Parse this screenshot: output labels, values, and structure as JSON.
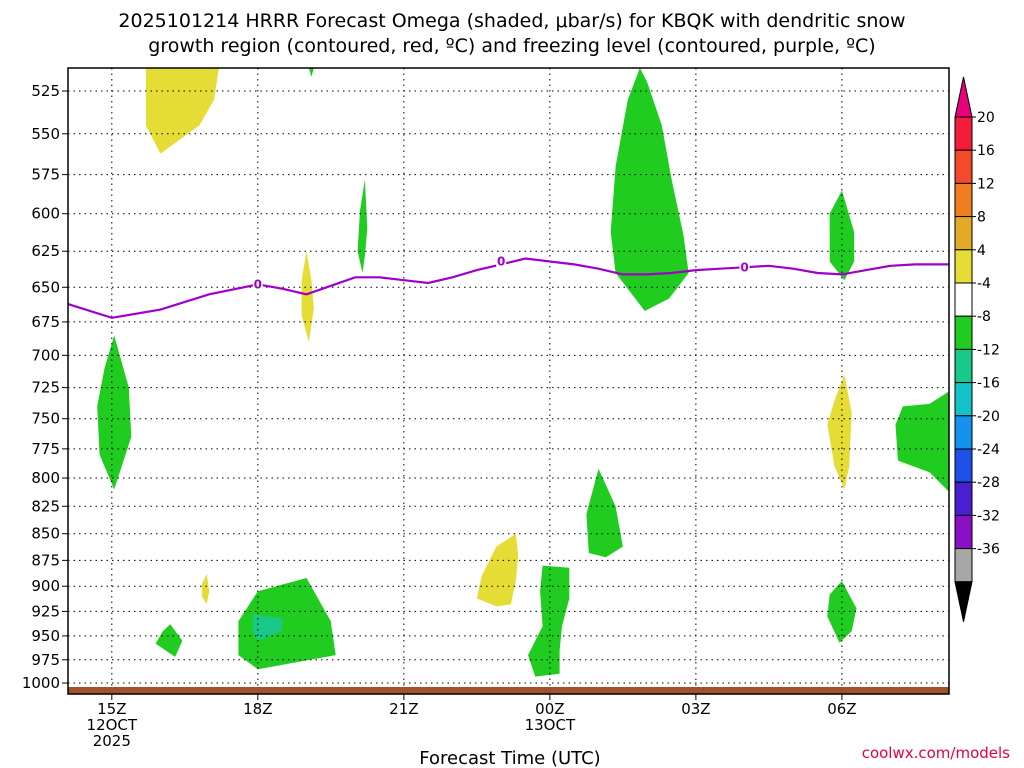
{
  "chart_data": {
    "type": "heatmap",
    "title_line1": "2025101214 HRRR Forecast Omega (shaded, μbar/s) for KBQK with dendritic snow",
    "title_line2": "growth region (contoured, red, ºC) and freezing level (contoured, purple, ºC)",
    "xlabel": "Forecast Time (UTC)",
    "ylabel": "",
    "credit": "coolwx.com/models",
    "x_ticks": [
      {
        "hour": 15,
        "lines": [
          "15Z",
          "12OCT",
          "2025"
        ]
      },
      {
        "hour": 18,
        "lines": [
          "18Z"
        ]
      },
      {
        "hour": 21,
        "lines": [
          "21Z"
        ]
      },
      {
        "hour": 24,
        "lines": [
          "00Z",
          "13OCT"
        ]
      },
      {
        "hour": 27,
        "lines": [
          "03Z"
        ]
      },
      {
        "hour": 30,
        "lines": [
          "06Z"
        ]
      }
    ],
    "xlim_hours": [
      14.1,
      32.2
    ],
    "y_ticks": [
      525,
      550,
      575,
      600,
      625,
      650,
      675,
      700,
      725,
      750,
      775,
      800,
      825,
      850,
      875,
      900,
      925,
      950,
      975,
      1000
    ],
    "ylim_hpa": [
      512,
      1012
    ],
    "y_scale": "log-pressure",
    "grid": true,
    "colorbar": {
      "tick_labels": [
        "20",
        "16",
        "12",
        "8",
        "4",
        "-4",
        "-8",
        "-12",
        "-16",
        "-20",
        "-24",
        "-28",
        "-32",
        "-36"
      ],
      "levels": [
        20,
        16,
        12,
        8,
        4,
        -4,
        -8,
        -12,
        -16,
        -20,
        -24,
        -28,
        -32,
        -36
      ],
      "colors": [
        "#f21d3b",
        "#f24a2a",
        "#ef7e22",
        "#e5a928",
        "#e5dc36",
        "#ffffff",
        "#1fcc1f",
        "#1ac98a",
        "#13c3c8",
        "#1592ec",
        "#1e4fe6",
        "#4a1fd0",
        "#8a10c4",
        "#a7a7a7"
      ],
      "top_cap_color": "#e6007e",
      "bottom_cap_color": "#000000"
    },
    "shaded_regions": [
      {
        "value_range": [
          4,
          8
        ],
        "color": "#e5dc36",
        "points": [
          [
            15.7,
            512
          ],
          [
            17.2,
            512
          ],
          [
            17.1,
            530
          ],
          [
            16.8,
            545
          ],
          [
            16.0,
            562
          ],
          [
            15.7,
            545
          ]
        ]
      },
      {
        "value_range": [
          4,
          8
        ],
        "color": "#e5dc36",
        "points": [
          [
            19.0,
            625
          ],
          [
            19.1,
            645
          ],
          [
            19.15,
            665
          ],
          [
            19.05,
            690
          ],
          [
            18.9,
            670
          ],
          [
            18.9,
            645
          ]
        ]
      },
      {
        "value_range": [
          4,
          8
        ],
        "color": "#e5dc36",
        "points": [
          [
            16.95,
            888
          ],
          [
            17.0,
            905
          ],
          [
            16.95,
            918
          ],
          [
            16.85,
            910
          ],
          [
            16.85,
            898
          ]
        ]
      },
      {
        "value_range": [
          4,
          8
        ],
        "color": "#e5dc36",
        "points": [
          [
            23.3,
            850
          ],
          [
            23.35,
            870
          ],
          [
            23.3,
            895
          ],
          [
            23.2,
            918
          ],
          [
            22.9,
            920
          ],
          [
            22.5,
            912
          ],
          [
            22.6,
            890
          ],
          [
            22.9,
            862
          ]
        ]
      },
      {
        "value_range": [
          4,
          8
        ],
        "color": "#e5dc36",
        "points": [
          [
            30.05,
            715
          ],
          [
            30.2,
            745
          ],
          [
            30.15,
            790
          ],
          [
            30.05,
            810
          ],
          [
            29.85,
            790
          ],
          [
            29.7,
            755
          ],
          [
            29.85,
            735
          ]
        ]
      },
      {
        "value_range": [
          -8,
          -4
        ],
        "color": "#1fcc1f",
        "points": [
          [
            19.05,
            512
          ],
          [
            19.15,
            512
          ],
          [
            19.1,
            517
          ]
        ]
      },
      {
        "value_range": [
          -8,
          -4
        ],
        "color": "#1fcc1f",
        "points": [
          [
            20.2,
            578
          ],
          [
            20.25,
            610
          ],
          [
            20.2,
            628
          ],
          [
            20.15,
            640
          ],
          [
            20.05,
            625
          ],
          [
            20.1,
            598
          ]
        ]
      },
      {
        "value_range": [
          -8,
          -4
        ],
        "color": "#1fcc1f",
        "points": [
          [
            15.05,
            685
          ],
          [
            15.35,
            725
          ],
          [
            15.4,
            765
          ],
          [
            15.05,
            810
          ],
          [
            14.75,
            780
          ],
          [
            14.7,
            740
          ],
          [
            14.85,
            710
          ]
        ]
      },
      {
        "value_range": [
          -8,
          -4
        ],
        "color": "#1fcc1f",
        "points": [
          [
            16.2,
            938
          ],
          [
            16.45,
            955
          ],
          [
            16.3,
            972
          ],
          [
            15.9,
            958
          ],
          [
            16.05,
            945
          ]
        ]
      },
      {
        "value_range": [
          -8,
          -4
        ],
        "color": "#1fcc1f",
        "points": [
          [
            19.0,
            892
          ],
          [
            19.5,
            935
          ],
          [
            19.6,
            970
          ],
          [
            18.0,
            985
          ],
          [
            17.6,
            970
          ],
          [
            17.6,
            935
          ],
          [
            18.0,
            905
          ]
        ]
      },
      {
        "value_range": [
          -8,
          -4
        ],
        "color": "#1fcc1f",
        "points": [
          [
            24.4,
            882
          ],
          [
            24.4,
            912
          ],
          [
            24.25,
            940
          ],
          [
            24.2,
            965
          ],
          [
            24.2,
            990
          ],
          [
            23.7,
            993
          ],
          [
            23.55,
            970
          ],
          [
            23.85,
            940
          ],
          [
            23.8,
            905
          ],
          [
            23.85,
            880
          ]
        ]
      },
      {
        "value_range": [
          -8,
          -4
        ],
        "color": "#1fcc1f",
        "points": [
          [
            25.0,
            792
          ],
          [
            25.35,
            825
          ],
          [
            25.5,
            862
          ],
          [
            25.15,
            872
          ],
          [
            24.8,
            868
          ],
          [
            24.75,
            832
          ]
        ]
      },
      {
        "value_range": [
          -8,
          -4
        ],
        "color": "#1fcc1f",
        "points": [
          [
            26.0,
            520
          ],
          [
            26.3,
            545
          ],
          [
            26.5,
            578
          ],
          [
            26.75,
            615
          ],
          [
            26.85,
            640
          ],
          [
            26.45,
            658
          ],
          [
            25.95,
            667
          ],
          [
            25.35,
            640
          ],
          [
            25.25,
            612
          ],
          [
            25.35,
            570
          ],
          [
            25.6,
            530
          ],
          [
            25.85,
            512
          ]
        ]
      },
      {
        "value_range": [
          -8,
          -4
        ],
        "color": "#1fcc1f",
        "points": [
          [
            30.0,
            585
          ],
          [
            30.25,
            612
          ],
          [
            30.25,
            632
          ],
          [
            30.05,
            645
          ],
          [
            29.75,
            632
          ],
          [
            29.75,
            600
          ]
        ]
      },
      {
        "value_range": [
          -8,
          -4
        ],
        "color": "#1fcc1f",
        "points": [
          [
            32.2,
            728
          ],
          [
            32.2,
            812
          ],
          [
            31.8,
            795
          ],
          [
            31.15,
            785
          ],
          [
            31.1,
            755
          ],
          [
            31.25,
            740
          ],
          [
            31.8,
            738
          ]
        ]
      },
      {
        "value_range": [
          -8,
          -4
        ],
        "color": "#1fcc1f",
        "points": [
          [
            30.0,
            895
          ],
          [
            30.3,
            922
          ],
          [
            30.2,
            945
          ],
          [
            29.95,
            957
          ],
          [
            29.7,
            930
          ],
          [
            29.75,
            908
          ]
        ]
      },
      {
        "value_range": [
          -12,
          -8
        ],
        "color": "#1ac98a",
        "points": [
          [
            17.9,
            928
          ],
          [
            18.5,
            932
          ],
          [
            18.5,
            945
          ],
          [
            18.0,
            955
          ],
          [
            17.9,
            945
          ]
        ]
      }
    ],
    "freezing_level": {
      "label": "0",
      "color": "#a000c8",
      "x_hours": [
        14.1,
        15.0,
        16.0,
        17.0,
        18.0,
        18.5,
        19.0,
        20.0,
        20.5,
        21.0,
        21.5,
        22.0,
        22.5,
        23.0,
        23.5,
        24.0,
        24.5,
        25.0,
        25.5,
        26.0,
        26.5,
        27.0,
        27.5,
        28.0,
        28.5,
        29.0,
        29.5,
        30.0,
        30.5,
        31.0,
        31.5,
        32.2
      ],
      "pressure_hpa": [
        662,
        672,
        666,
        655,
        648,
        651,
        655,
        643,
        643,
        645,
        647,
        643,
        638,
        634,
        630,
        632,
        634,
        637,
        641,
        641,
        640,
        638,
        637,
        636,
        635,
        637,
        640,
        641,
        638,
        635,
        634,
        634
      ],
      "label_points": [
        [
          18.0,
          648
        ],
        [
          23.0,
          632
        ],
        [
          28.0,
          636
        ]
      ]
    },
    "terrain_strip_color": "#a0522d"
  }
}
